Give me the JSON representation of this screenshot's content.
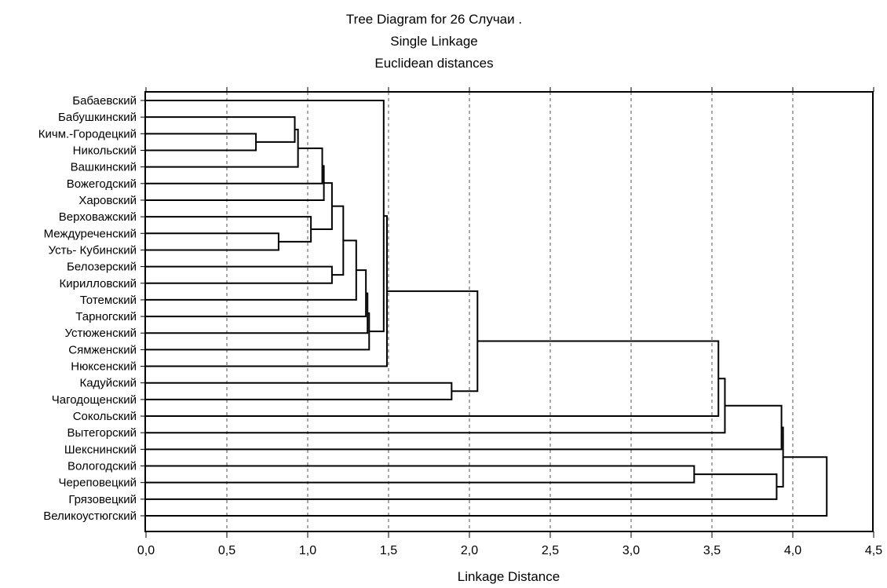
{
  "chart_data": {
    "type": "dendrogram",
    "title": [
      "Tree Diagram for 26 Случаи .",
      "Single Linkage",
      "Euclidean distances"
    ],
    "xlabel": "Linkage Distance",
    "xlim": [
      0,
      4.5
    ],
    "xticks": [
      "0,0",
      "0,5",
      "1,0",
      "1,5",
      "2,0",
      "2,5",
      "3,0",
      "3,5",
      "4,0",
      "4,5"
    ],
    "grid": "vertical dotted",
    "leaves": [
      "Бабаевский",
      "Бабушкинский",
      "Кичм.-Городецкий",
      "Никольский",
      "Вашкинский",
      "Вожегодский",
      "Харовский",
      "Верховажский",
      "Междуреченский",
      "Усть- Кубинский",
      "Белозерский",
      "Кирилловский",
      "Тотемский",
      "Тарногский",
      "Устюженский",
      "Сямженский",
      "Нюксенский",
      "Кадуйский",
      "Чагодощенский",
      "Сокольский",
      "Вытегорский",
      "Шекснинский",
      "Вологодский",
      "Череповецкий",
      "Грязовецкий",
      "Великоустюгский"
    ],
    "merges": [
      {
        "a": "L2",
        "b": "L3",
        "height": 0.68
      },
      {
        "a": "L1",
        "b": "M0",
        "height": 0.92
      },
      {
        "a": "M1",
        "b": "L4",
        "height": 0.94
      },
      {
        "a": "L8",
        "b": "L9",
        "height": 0.82
      },
      {
        "a": "M2",
        "b": "L5",
        "height": 1.09
      },
      {
        "a": "M4",
        "b": "L6",
        "height": 1.1
      },
      {
        "a": "L7",
        "b": "M3",
        "height": 1.02
      },
      {
        "a": "M5",
        "b": "M6",
        "height": 1.15
      },
      {
        "a": "L10",
        "b": "L11",
        "height": 1.15
      },
      {
        "a": "M7",
        "b": "M8",
        "height": 1.22
      },
      {
        "a": "M9",
        "b": "L12",
        "height": 1.3
      },
      {
        "a": "M10",
        "b": "L13",
        "height": 1.36
      },
      {
        "a": "M11",
        "b": "L14",
        "height": 1.37
      },
      {
        "a": "M12",
        "b": "L15",
        "height": 1.38
      },
      {
        "a": "L0",
        "b": "M13",
        "height": 1.47
      },
      {
        "a": "M14",
        "b": "L16",
        "height": 1.49
      },
      {
        "a": "L17",
        "b": "L18",
        "height": 1.89
      },
      {
        "a": "M15",
        "b": "M16",
        "height": 2.05
      },
      {
        "a": "M17",
        "b": "L19",
        "height": 3.54
      },
      {
        "a": "M18",
        "b": "L20",
        "height": 3.58
      },
      {
        "a": "L22",
        "b": "L23",
        "height": 3.39
      },
      {
        "a": "M20",
        "b": "L24",
        "height": 3.9
      },
      {
        "a": "M19",
        "b": "L21",
        "height": 3.93
      },
      {
        "a": "M22",
        "b": "M21",
        "height": 3.94
      },
      {
        "a": "M23",
        "b": "L25",
        "height": 4.21
      }
    ]
  }
}
